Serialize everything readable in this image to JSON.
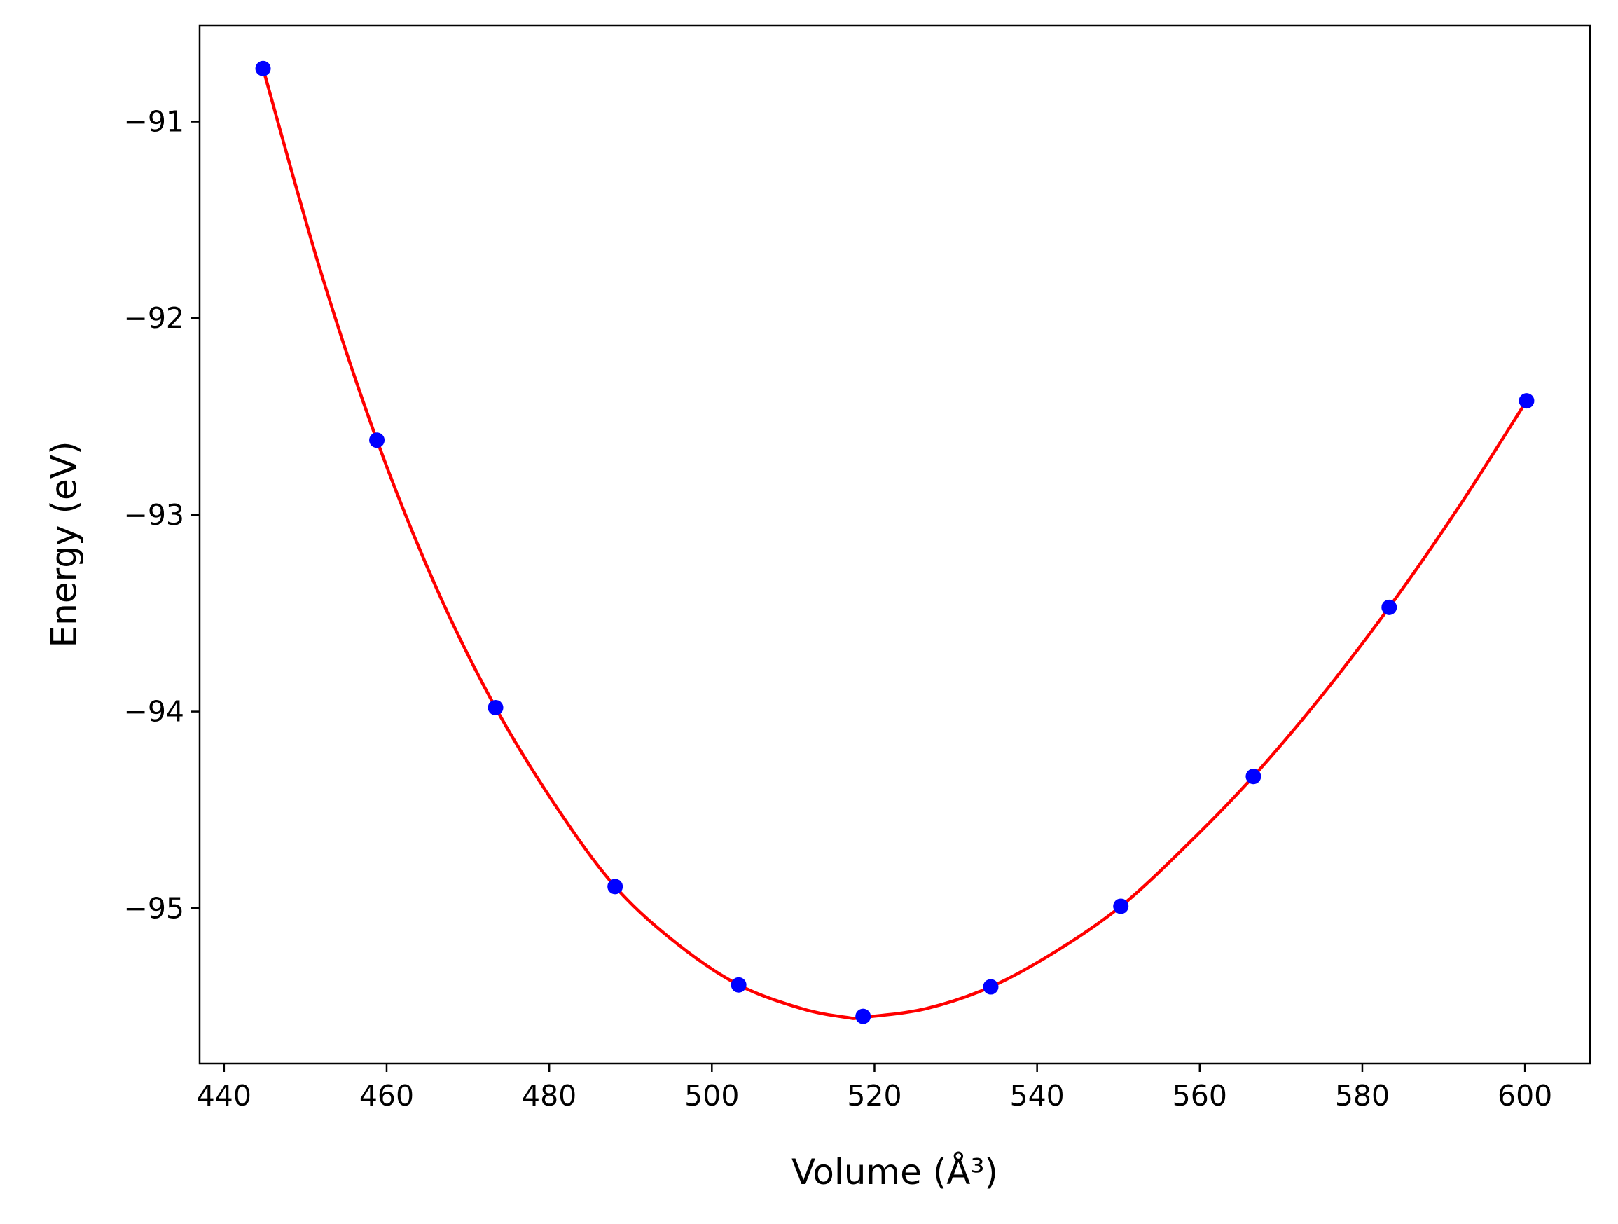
{
  "chart_data": {
    "type": "scatter",
    "xlabel": "Volume (Å³)",
    "ylabel": "Energy (eV)",
    "xlim": [
      437,
      608
    ],
    "ylim": [
      -95.79,
      -90.51
    ],
    "x_ticks": [
      440,
      460,
      480,
      500,
      520,
      540,
      560,
      580,
      600
    ],
    "y_ticks": [
      -95,
      -94,
      -93,
      -92,
      -91
    ],
    "x_tick_labels": [
      "440",
      "460",
      "480",
      "500",
      "520",
      "540",
      "560",
      "580",
      "600"
    ],
    "y_tick_labels": [
      "−95",
      "−94",
      "−93",
      "−92",
      "−91"
    ],
    "grid": false,
    "series": [
      {
        "kind": "points",
        "color": "#0000ff",
        "points": [
          {
            "x": 444.8,
            "y": -90.73
          },
          {
            "x": 458.8,
            "y": -92.62
          },
          {
            "x": 473.4,
            "y": -93.98
          },
          {
            "x": 488.1,
            "y": -94.89
          },
          {
            "x": 503.3,
            "y": -95.39
          },
          {
            "x": 518.6,
            "y": -95.55
          },
          {
            "x": 534.3,
            "y": -95.4
          },
          {
            "x": 550.3,
            "y": -94.99
          },
          {
            "x": 566.6,
            "y": -94.33
          },
          {
            "x": 583.3,
            "y": -93.47
          },
          {
            "x": 600.2,
            "y": -92.42
          }
        ]
      },
      {
        "kind": "fit-curve",
        "color": "#ff0000",
        "points": [
          {
            "x": 444.8,
            "y": -90.73
          },
          {
            "x": 451.8,
            "y": -91.75
          },
          {
            "x": 458.8,
            "y": -92.62
          },
          {
            "x": 466.1,
            "y": -93.37
          },
          {
            "x": 473.4,
            "y": -93.98
          },
          {
            "x": 480.8,
            "y": -94.48
          },
          {
            "x": 488.1,
            "y": -94.89
          },
          {
            "x": 495.7,
            "y": -95.18
          },
          {
            "x": 503.3,
            "y": -95.39
          },
          {
            "x": 511.0,
            "y": -95.51
          },
          {
            "x": 516.5,
            "y": -95.555
          },
          {
            "x": 518.6,
            "y": -95.555
          },
          {
            "x": 526.4,
            "y": -95.51
          },
          {
            "x": 534.3,
            "y": -95.4
          },
          {
            "x": 542.3,
            "y": -95.22
          },
          {
            "x": 550.3,
            "y": -94.99
          },
          {
            "x": 558.4,
            "y": -94.68
          },
          {
            "x": 566.6,
            "y": -94.33
          },
          {
            "x": 575.0,
            "y": -93.92
          },
          {
            "x": 583.3,
            "y": -93.47
          },
          {
            "x": 591.7,
            "y": -92.97
          },
          {
            "x": 600.2,
            "y": -92.42
          }
        ]
      }
    ]
  }
}
